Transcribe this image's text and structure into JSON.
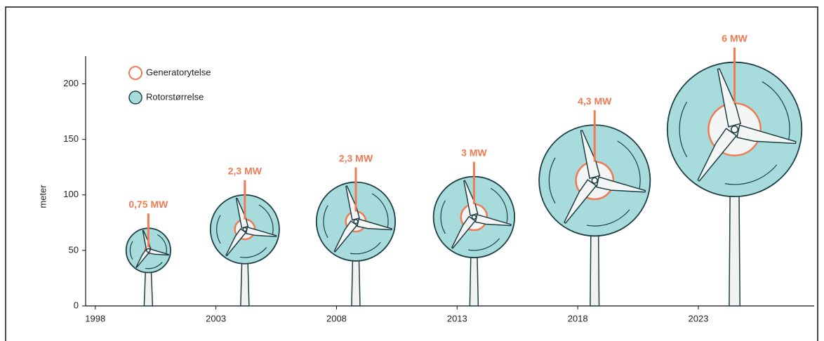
{
  "chart_data": {
    "type": "turbine",
    "y_label": "meter",
    "x": [
      2000.2,
      2004.2,
      2008.8,
      2013.7,
      2018.7,
      2024.5
    ],
    "series": [
      {
        "name": "Generatorytelse",
        "color": "#f07a52",
        "values": [
          0.75,
          2.3,
          2.3,
          3,
          4.3,
          6
        ],
        "value_labels": [
          "0,75 MW",
          "2,3 MW",
          "2,3 MW",
          "3 MW",
          "4,3 MW",
          "6 MW"
        ]
      },
      {
        "name": "Rotorstørrelse",
        "color": "#a8dcdc",
        "values": [
          50,
          69,
          76,
          80,
          113,
          159
        ],
        "sizes": [
          40,
          62,
          71,
          73,
          100,
          121
        ]
      }
    ],
    "xlim": [
      1997.6,
      2027.8
    ],
    "xticks": [
      1998,
      2003,
      2008,
      2013,
      2018,
      2023
    ],
    "ylim": [
      0,
      225
    ],
    "yticks": [
      0,
      50,
      100,
      150,
      200
    ]
  }
}
